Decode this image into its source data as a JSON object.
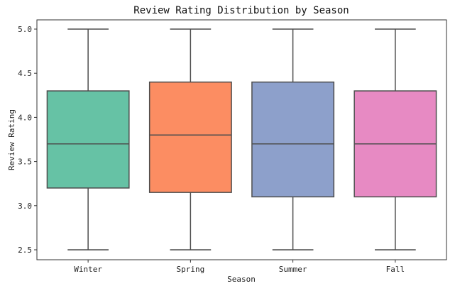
{
  "chart_data": {
    "type": "box",
    "title": "Review Rating Distribution by Season",
    "xlabel": "Season",
    "ylabel": "Review Rating",
    "ylim": [
      2.4,
      5.1
    ],
    "yticks": [
      "2.5",
      "3.0",
      "3.5",
      "4.0",
      "4.5",
      "5.0"
    ],
    "grid": false,
    "categories": [
      "Winter",
      "Spring",
      "Summer",
      "Fall"
    ],
    "boxes": [
      {
        "category": "Winter",
        "min": 2.5,
        "q1": 3.2,
        "median": 3.7,
        "q3": 4.3,
        "max": 5.0,
        "color": "#66c2a5"
      },
      {
        "category": "Spring",
        "min": 2.5,
        "q1": 3.15,
        "median": 3.8,
        "q3": 4.4,
        "max": 5.0,
        "color": "#fc8d62"
      },
      {
        "category": "Summer",
        "min": 2.5,
        "q1": 3.1,
        "median": 3.7,
        "q3": 4.4,
        "max": 5.0,
        "color": "#8da0cb"
      },
      {
        "category": "Fall",
        "min": 2.5,
        "q1": 3.1,
        "median": 3.7,
        "q3": 4.3,
        "max": 5.0,
        "color": "#e78ac3"
      }
    ]
  }
}
